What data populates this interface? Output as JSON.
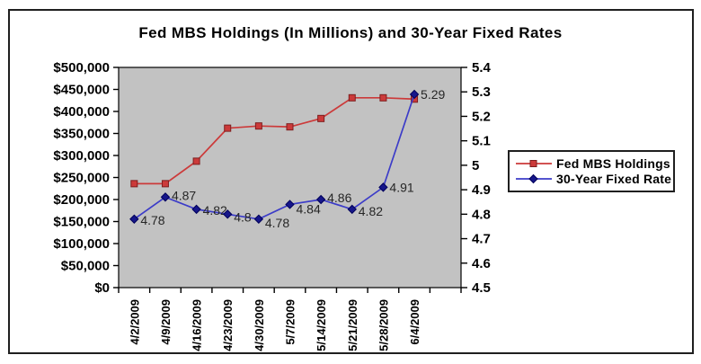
{
  "chart_data": {
    "type": "line",
    "title": "Fed MBS Holdings (In Millions) and 30-Year Fixed Rates",
    "categories": [
      "4/2/2009",
      "4/9/2009",
      "4/16/2009",
      "4/23/2009",
      "4/30/2009",
      "5/7/2009",
      "5/14/2009",
      "5/21/2009",
      "5/28/2009",
      "6/4/2009"
    ],
    "x_padding_slots": 1,
    "series": [
      {
        "name": "Fed MBS Holdings",
        "axis": "left",
        "marker": "square",
        "line_color": "#cc3a3a",
        "marker_fill": "#cc3a3a",
        "marker_stroke": "#7e1e1e",
        "values": [
          236000,
          236000,
          287000,
          362000,
          367000,
          365000,
          384000,
          431000,
          431000,
          428000
        ]
      },
      {
        "name": "30-Year Fixed Rate",
        "axis": "right",
        "marker": "diamond",
        "line_color": "#3c3cc8",
        "marker_fill": "#16168a",
        "marker_stroke": "#00005a",
        "values": [
          4.78,
          4.87,
          4.82,
          4.8,
          4.78,
          4.84,
          4.86,
          4.82,
          4.91,
          5.29
        ],
        "data_labels": [
          "4.78",
          "4.87",
          "4.82",
          "4.8",
          "4.78",
          "4.84",
          "4.86",
          "4.82",
          "4.91",
          "5.29"
        ],
        "data_label_dy": [
          6,
          3,
          6,
          8,
          9,
          10,
          3,
          7,
          5,
          5
        ],
        "data_label_dx": 7
      }
    ],
    "left_axis": {
      "min": 0,
      "max": 500000,
      "step": 50000,
      "ticks": [
        "$0",
        "$50,000",
        "$100,000",
        "$150,000",
        "$200,000",
        "$250,000",
        "$300,000",
        "$350,000",
        "$400,000",
        "$450,000",
        "$500,000"
      ]
    },
    "right_axis": {
      "min": 4.5,
      "max": 5.4,
      "step": 0.1,
      "ticks": [
        "4.5",
        "4.6",
        "4.7",
        "4.8",
        "4.9",
        "5",
        "5.1",
        "5.2",
        "5.3",
        "5.4"
      ]
    },
    "grid": false,
    "legend_position": "right",
    "colors": {
      "plot_bg": "#c2c2c2",
      "plot_border": "#000000",
      "axis_text": "#000000",
      "data_label_text": "#262626",
      "frame_border": "#1f1f1f"
    }
  }
}
